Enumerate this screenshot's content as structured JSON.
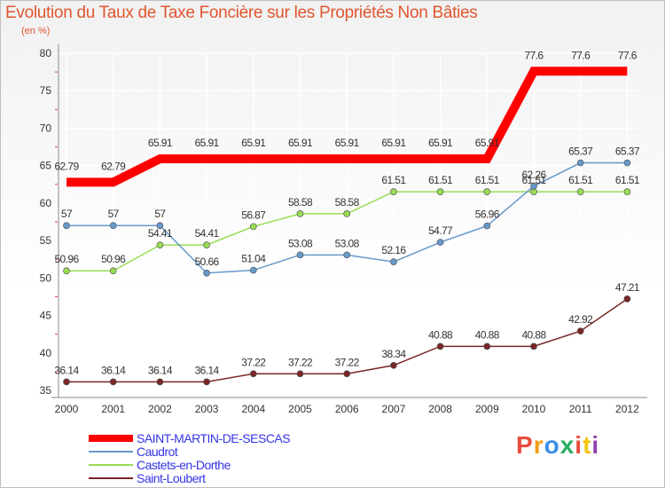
{
  "chart_data": {
    "type": "line",
    "title": "Evolution du Taux de Taxe Foncière sur les Propriétés Non Bâties",
    "subtitle": "(en %)",
    "xlabel": "",
    "ylabel": "(en %)",
    "ylim": [
      35,
      80
    ],
    "yticks": [
      35,
      40,
      45,
      50,
      55,
      60,
      65,
      70,
      75,
      80
    ],
    "categories": [
      "2000",
      "2001",
      "2002",
      "2003",
      "2004",
      "2005",
      "2006",
      "2007",
      "2008",
      "2009",
      "2010",
      "2011",
      "2012"
    ],
    "series": [
      {
        "name": "SAINT-MARTIN-DE-SESCAS",
        "color": "#ff0000",
        "values": [
          62.79,
          62.79,
          65.91,
          65.91,
          65.91,
          65.91,
          65.91,
          65.91,
          65.91,
          65.91,
          77.6,
          77.6,
          77.6
        ],
        "labels": [
          "62.79",
          "62.79",
          "65.91",
          "65.91",
          "65.91",
          "65.91",
          "65.91",
          "65.91",
          "65.91",
          "65.91",
          "77.6",
          "77.6",
          "77.6"
        ]
      },
      {
        "name": "Caudrot",
        "color": "#6699cc",
        "values": [
          57,
          57,
          57,
          50.66,
          51.04,
          53.08,
          53.08,
          52.16,
          54.77,
          56.96,
          62.26,
          65.37,
          65.37
        ],
        "labels": [
          "57",
          "57",
          "57",
          "50.66",
          "51.04",
          "53.08",
          "53.08",
          "52.16",
          "54.77",
          "56.96",
          "62.26",
          "65.37",
          "65.37"
        ]
      },
      {
        "name": "Castets-en-Dorthe",
        "color": "#99dd55",
        "values": [
          50.96,
          50.96,
          54.41,
          54.41,
          56.87,
          58.58,
          58.58,
          61.51,
          61.51,
          61.51,
          61.51,
          61.51,
          61.51
        ],
        "labels": [
          "50.96",
          "50.96",
          "54.41",
          "54.41",
          "56.87",
          "58.58",
          "58.58",
          "61.51",
          "61.51",
          "61.51",
          "61.51",
          "61.51",
          "61.51"
        ]
      },
      {
        "name": "Saint-Loubert",
        "color": "#7a2626",
        "values": [
          36.14,
          36.14,
          36.14,
          36.14,
          37.22,
          37.22,
          37.22,
          38.34,
          40.88,
          40.88,
          40.88,
          42.92,
          47.21
        ],
        "labels": [
          "36.14",
          "36.14",
          "36.14",
          "36.14",
          "37.22",
          "37.22",
          "37.22",
          "38.34",
          "40.88",
          "40.88",
          "40.88",
          "42.92",
          "47.21"
        ]
      }
    ]
  },
  "logo": {
    "letters": [
      "P",
      "r",
      "o",
      "x",
      "i",
      "t",
      "i"
    ],
    "colors": [
      "#e84c3d",
      "#f39c12",
      "#3a8ee6",
      "#27ae60",
      "#e74c3c",
      "#f1c40f",
      "#8e44ad"
    ]
  }
}
